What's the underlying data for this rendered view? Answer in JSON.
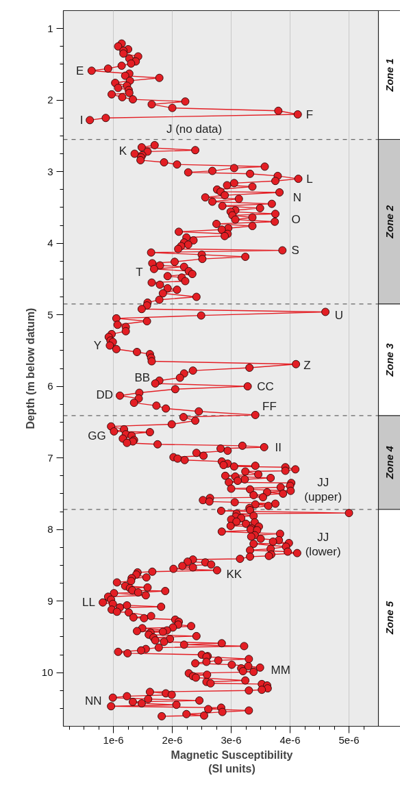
{
  "chart_data": {
    "type": "line",
    "xlabel": "Magnetic Susceptibility\n(SI units)",
    "ylabel": "Depth (m below datum)",
    "xlim": [
      1.5e-07,
      5.5e-06
    ],
    "ylim": [
      10.75,
      0.75
    ],
    "xticks": [
      {
        "value": 2.5e-07,
        "label": null
      },
      {
        "value": 5e-07,
        "label": null
      },
      {
        "value": 7.5e-07,
        "label": null
      },
      {
        "value": 1e-06,
        "label": "1e-6"
      },
      {
        "value": 1.25e-06,
        "label": null
      },
      {
        "value": 1.5e-06,
        "label": null
      },
      {
        "value": 1.75e-06,
        "label": null
      },
      {
        "value": 2e-06,
        "label": "2e-6"
      },
      {
        "value": 2.25e-06,
        "label": null
      },
      {
        "value": 2.5e-06,
        "label": null
      },
      {
        "value": 2.75e-06,
        "label": null
      },
      {
        "value": 3e-06,
        "label": "3e-6"
      },
      {
        "value": 3.25e-06,
        "label": null
      },
      {
        "value": 3.5e-06,
        "label": null
      },
      {
        "value": 3.75e-06,
        "label": null
      },
      {
        "value": 4e-06,
        "label": "4e-6"
      },
      {
        "value": 4.25e-06,
        "label": null
      },
      {
        "value": 4.5e-06,
        "label": null
      },
      {
        "value": 4.75e-06,
        "label": null
      },
      {
        "value": 5e-06,
        "label": "5e-6"
      },
      {
        "value": 5.25e-06,
        "label": null
      }
    ],
    "yticks": [
      1,
      {
        "value": 1.25,
        "label": null
      },
      {
        "value": 1.5,
        "label": null
      },
      {
        "value": 1.75,
        "label": null
      },
      2,
      {
        "value": 2.25,
        "label": null
      },
      {
        "value": 2.5,
        "label": null
      },
      {
        "value": 2.75,
        "label": null
      },
      3,
      {
        "value": 3.25,
        "label": null
      },
      {
        "value": 3.5,
        "label": null
      },
      {
        "value": 3.75,
        "label": null
      },
      4,
      {
        "value": 4.25,
        "label": null
      },
      {
        "value": 4.5,
        "label": null
      },
      {
        "value": 4.75,
        "label": null
      },
      5,
      {
        "value": 5.25,
        "label": null
      },
      {
        "value": 5.5,
        "label": null
      },
      {
        "value": 5.75,
        "label": null
      },
      6,
      {
        "value": 6.25,
        "label": null
      },
      {
        "value": 6.5,
        "label": null
      },
      {
        "value": 6.75,
        "label": null
      },
      7,
      {
        "value": 7.25,
        "label": null
      },
      {
        "value": 7.5,
        "label": null
      },
      {
        "value": 7.75,
        "label": null
      },
      8,
      {
        "value": 8.25,
        "label": null
      },
      {
        "value": 8.5,
        "label": null
      },
      {
        "value": 8.75,
        "label": null
      },
      9,
      {
        "value": 9.25,
        "label": null
      },
      {
        "value": 9.5,
        "label": null
      },
      {
        "value": 9.75,
        "label": null
      },
      10,
      {
        "value": 10.25,
        "label": null
      },
      {
        "value": 10.5,
        "label": null
      }
    ],
    "grid": "x",
    "marker": "circle",
    "line_style": "solid",
    "series": [
      {
        "color": "#e31e24",
        "x": [
          1.14e-06,
          1.08e-06,
          1.25e-06,
          1.17e-06,
          1.17e-06,
          1.42e-06,
          1.27e-06,
          1.38e-06,
          1.3e-06,
          1.14e-06,
          9.1e-07,
          6.3e-07,
          1.27e-06,
          1.2e-06,
          1.78e-06,
          1.28e-06,
          1.03e-06,
          1.23e-06,
          1.08e-06,
          1.26e-06,
          1.27e-06,
          9.7e-07,
          1.15e-06,
          1.33e-06,
          2.22e-06,
          1.65e-06,
          2e-06,
          3.8e-06,
          4.13e-06,
          8.7e-07,
          6e-07,
          null,
          1.7e-06,
          1.48e-06,
          2.39e-06,
          1.58e-06,
          1.36e-06,
          1.49e-06,
          1.47e-06,
          1.46e-06,
          1.86e-06,
          2.08e-06,
          3.57e-06,
          3.05e-06,
          2.68e-06,
          2.27e-06,
          3.32e-06,
          3.79e-06,
          4.14e-06,
          3.75e-06,
          3.05e-06,
          2.93e-06,
          3.36e-06,
          2.76e-06,
          2.82e-06,
          3.82e-06,
          2.89e-06,
          2.56e-06,
          3.13e-06,
          2.68e-06,
          3.69e-06,
          2.85e-06,
          3.49e-06,
          3.07e-06,
          2.99e-06,
          3.75e-06,
          3.02e-06,
          3.36e-06,
          3.07e-06,
          3.74e-06,
          2.75e-06,
          3.36e-06,
          2.95e-06,
          2.84e-06,
          2.11e-06,
          2.94e-06,
          2.89e-06,
          2.24e-06,
          2.36e-06,
          2.2e-06,
          2.27e-06,
          2.15e-06,
          2.1e-06,
          3.87e-06,
          1.64e-06,
          2.5e-06,
          3.24e-06,
          2.51e-06,
          2.04e-06,
          1.66e-06,
          1.79e-06,
          2.2e-06,
          1.69e-06,
          2.28e-06,
          2.34e-06,
          1.92e-06,
          2.16e-06,
          2.22e-06,
          1.65e-06,
          1.79e-06,
          1.92e-06,
          2.08e-06,
          1.84e-06,
          2.41e-06,
          1.78e-06,
          1.58e-06,
          1.57e-06,
          1.48e-06,
          4.6e-06,
          2.49e-06,
          1.05e-06,
          1.57e-06,
          1.07e-06,
          1.21e-06,
          1.21e-06,
          9.7e-07,
          9.2e-07,
          9.5e-07,
          9.9e-07,
          9.4e-07,
          1.05e-06,
          1.4e-06,
          1.62e-06,
          1.64e-06,
          1.65e-06,
          4.1e-06,
          3.31e-06,
          2.35e-06,
          2.2e-06,
          2.13e-06,
          1.78e-06,
          1.71e-06,
          3.28e-06,
          2.05e-06,
          1.44e-06,
          1.11e-06,
          1.43e-06,
          1.35e-06,
          1.73e-06,
          1.89e-06,
          2.45e-06,
          3.41e-06,
          2.19e-06,
          2.39e-06,
          1.99e-06,
          9.6e-07,
          1.18e-06,
          1.01e-06,
          1.62e-06,
          1.21e-06,
          1.31e-06,
          1.16e-06,
          1.35e-06,
          1.33e-06,
          1.23e-06,
          1.75e-06,
          3.19e-06,
          3.56e-06,
          2.82e-06,
          2.94e-06,
          2.41e-06,
          2.53e-06,
          2.02e-06,
          2.09e-06,
          2.21e-06,
          2.84e-06,
          2.94e-06,
          2.87e-06,
          3.41e-06,
          3.05e-06,
          3.92e-06,
          4.09e-06,
          3.92e-06,
          3.24e-06,
          3.46e-06,
          2.9e-06,
          3.07e-06,
          3.67e-06,
          3.23e-06,
          3.11e-06,
          2.96e-06,
          4.02e-06,
          4e-06,
          3.84e-06,
          3e-06,
          3.32e-06,
          4.01e-06,
          3.61e-06,
          3.88e-06,
          3.38e-06,
          3.54e-06,
          2.64e-06,
          2.52e-06,
          2.63e-06,
          3.06e-06,
          3.75e-06,
          3.41e-06,
          3.63e-06,
          3.31e-06,
          3.32e-06,
          2.83e-06,
          5e-06,
          3.09e-06,
          3.38e-06,
          3.08e-06,
          3.17e-06,
          3e-06,
          3.09e-06,
          3.4e-06,
          3.25e-06,
          2.99e-06,
          3.47e-06,
          3.34e-06,
          3.33e-06,
          3.44e-06,
          2.84e-06,
          3.83e-06,
          3.4e-06,
          3.34e-06,
          3.5e-06,
          3.81e-06,
          3.71e-06,
          3.98e-06,
          3.38e-06,
          3.93e-06,
          3.67e-06,
          3.32e-06,
          3.96e-06,
          4.12e-06,
          3.68e-06,
          3.64e-06,
          3.32e-06,
          3.15e-06,
          2.35e-06,
          2.26e-06,
          2.56e-06,
          2.66e-06,
          2.17e-06,
          2.35e-06,
          2.02e-06,
          2.76e-06,
          1.66e-06,
          1.41e-06,
          1.39e-06,
          1.56e-06,
          1.31e-06,
          1.3e-06,
          1.06e-06,
          1.2e-06,
          1.58e-06,
          1.28e-06,
          1.32e-06,
          1.88e-06,
          1.42e-06,
          1.01e-06,
          1.55e-06,
          9.1e-07,
          9.6e-07,
          8.2e-07,
          9.9e-07,
          1.23e-06,
          1.81e-06,
          1.11e-06,
          9.7e-07,
          1.06e-06,
          1.26e-06,
          1.64e-06,
          1.34e-06,
          1.52e-06,
          2.05e-06,
          2.11e-06,
          2.1e-06,
          2.32e-06,
          2.01e-06,
          1.49e-06,
          1.91e-06,
          1.4e-06,
          1.84e-06,
          1.63e-06,
          1.6e-06,
          2.41e-06,
          1.68e-06,
          1.96e-06,
          1.71e-06,
          1.86e-06,
          2.84e-06,
          2.2e-06,
          3.22e-06,
          1.77e-06,
          1.55e-06,
          1.47e-06,
          1.08e-06,
          1.24e-06,
          2.5e-06,
          2.6e-06,
          2.58e-06,
          3.3e-06,
          2.78e-06,
          2.58e-06,
          2.39e-06,
          3.01e-06,
          3.29e-06,
          3.49e-06,
          3.17e-06,
          3.2e-06,
          3.38e-06,
          2.28e-06,
          2.59e-06,
          2.35e-06,
          2.4e-06,
          3.24e-06,
          2.58e-06,
          2.65e-06,
          3.52e-06,
          3.61e-06,
          3.62e-06,
          3.52e-06,
          3.3e-06,
          1.62e-06,
          1.89e-06,
          1.99e-06,
          1.23e-06,
          9.9e-07,
          1.59e-06,
          2.46e-06,
          1.33e-06,
          1.48e-06,
          2.07e-06,
          9.6e-07,
          2.83e-06,
          2.61e-06,
          3.3e-06,
          2.85e-06,
          2.24e-06,
          2.54e-06,
          1.82e-06
        ],
        "values": [
          1.21,
          1.25,
          1.29,
          1.31,
          1.35,
          1.39,
          1.42,
          1.46,
          1.49,
          1.52,
          1.56,
          1.59,
          1.63,
          1.66,
          1.69,
          1.73,
          1.76,
          1.8,
          1.83,
          1.86,
          1.9,
          1.92,
          1.96,
          1.99,
          2.02,
          2.06,
          2.11,
          2.15,
          2.2,
          2.25,
          2.28,
          null,
          2.63,
          2.66,
          2.7,
          2.72,
          2.75,
          2.77,
          2.8,
          2.84,
          2.87,
          2.9,
          2.93,
          2.95,
          2.99,
          3.01,
          3.03,
          3.06,
          3.1,
          3.13,
          3.16,
          3.19,
          3.21,
          3.25,
          3.28,
          3.29,
          3.33,
          3.36,
          3.38,
          3.42,
          3.45,
          3.48,
          3.51,
          3.54,
          3.56,
          3.59,
          3.61,
          3.64,
          3.67,
          3.7,
          3.73,
          3.76,
          3.79,
          3.81,
          3.84,
          3.87,
          3.9,
          3.92,
          3.96,
          3.99,
          4.02,
          4.04,
          4.08,
          4.1,
          4.13,
          4.16,
          4.19,
          4.22,
          4.26,
          4.28,
          4.31,
          4.33,
          4.36,
          4.39,
          4.43,
          4.46,
          4.48,
          4.53,
          4.55,
          4.58,
          4.63,
          4.65,
          4.7,
          4.75,
          4.79,
          4.83,
          4.87,
          4.92,
          4.96,
          5.01,
          5.05,
          5.09,
          5.14,
          5.17,
          5.23,
          5.27,
          5.31,
          5.36,
          5.38,
          5.43,
          5.48,
          5.52,
          5.55,
          5.6,
          5.65,
          5.69,
          5.74,
          5.78,
          5.82,
          5.88,
          5.92,
          5.96,
          6.0,
          6.04,
          6.09,
          6.13,
          6.17,
          6.23,
          6.27,
          6.31,
          6.35,
          6.4,
          6.43,
          6.48,
          6.53,
          6.56,
          6.6,
          6.63,
          6.64,
          6.67,
          6.69,
          6.73,
          6.75,
          6.77,
          6.79,
          6.81,
          6.83,
          6.85,
          6.87,
          6.9,
          6.93,
          6.97,
          6.99,
          7.01,
          7.03,
          7.05,
          7.08,
          7.1,
          7.11,
          7.12,
          7.13,
          7.16,
          7.18,
          7.19,
          7.23,
          7.25,
          7.26,
          7.28,
          7.3,
          7.32,
          7.34,
          7.35,
          7.39,
          7.41,
          7.43,
          7.44,
          7.46,
          7.48,
          7.5,
          7.52,
          7.55,
          7.56,
          7.59,
          7.61,
          7.62,
          7.64,
          7.65,
          7.67,
          7.7,
          7.73,
          7.74,
          7.77,
          7.78,
          7.81,
          7.82,
          7.84,
          7.86,
          7.89,
          7.9,
          7.92,
          7.95,
          7.96,
          7.98,
          8.0,
          8.01,
          8.03,
          8.06,
          8.08,
          8.1,
          8.13,
          8.15,
          8.17,
          8.19,
          8.2,
          8.24,
          8.27,
          8.29,
          8.31,
          8.33,
          8.35,
          8.37,
          8.38,
          8.41,
          8.42,
          8.45,
          8.46,
          8.49,
          8.51,
          8.53,
          8.55,
          8.57,
          8.59,
          8.6,
          8.63,
          8.67,
          8.68,
          8.72,
          8.74,
          8.79,
          8.81,
          8.82,
          8.85,
          8.86,
          8.88,
          8.89,
          8.92,
          8.94,
          8.98,
          9.02,
          9.04,
          9.06,
          9.08,
          9.09,
          9.12,
          9.15,
          9.16,
          9.21,
          9.23,
          9.24,
          9.26,
          9.29,
          9.33,
          9.35,
          9.37,
          9.38,
          9.41,
          9.42,
          9.43,
          9.44,
          9.47,
          9.49,
          9.51,
          9.53,
          9.55,
          9.57,
          9.59,
          9.61,
          9.63,
          9.65,
          9.67,
          9.69,
          9.71,
          9.73,
          9.75,
          9.77,
          9.78,
          9.81,
          9.83,
          9.85,
          9.87,
          9.89,
          9.91,
          9.93,
          9.94,
          9.98,
          9.99,
          10.01,
          10.03,
          10.05,
          10.07,
          10.11,
          10.13,
          10.15,
          10.16,
          10.18,
          10.22,
          10.24,
          10.25,
          10.27,
          10.29,
          10.31,
          10.33,
          10.35,
          10.37,
          10.39,
          10.41,
          10.43,
          10.45,
          10.47,
          10.49,
          10.51,
          10.53,
          10.55,
          10.58,
          10.6,
          10.61
        ]
      }
    ],
    "ref_lines": [
      {
        "axis": "y",
        "value": 2.55,
        "color": "#666666",
        "line_style": "dashed"
      },
      {
        "axis": "y",
        "value": 4.85,
        "color": "#666666",
        "line_style": "dashed"
      },
      {
        "axis": "y",
        "value": 6.41,
        "color": "#666666",
        "line_style": "dashed"
      },
      {
        "axis": "y",
        "value": 7.72,
        "color": "#666666",
        "line_style": "dashed"
      }
    ],
    "annotations": [
      "E",
      "F",
      "I",
      "J  (no data)",
      "K",
      "L",
      "N",
      "O",
      "S",
      "T",
      "U",
      "Y",
      "Z",
      "BB",
      "CC",
      "DD",
      "FF",
      "GG",
      "II",
      "JJ\n(upper)",
      "JJ\n(lower)",
      "KK",
      "LL",
      "MM",
      "NN",
      "Zone 1",
      "Zone 2",
      "Zone 3",
      "Zone 4",
      "Zone 5"
    ]
  }
}
